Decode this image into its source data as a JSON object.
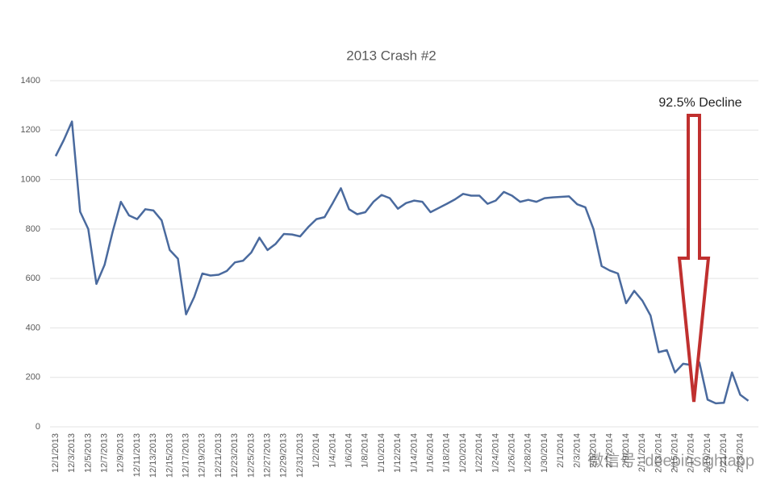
{
  "chart_data": {
    "type": "line",
    "title": "2013 Crash #2",
    "annotation": "92.5% Decline",
    "watermark": "微信号: deepinsightapp",
    "categories": [
      "12/1/2013",
      null,
      "12/3/2013",
      null,
      "12/5/2013",
      null,
      "12/7/2013",
      null,
      "12/9/2013",
      null,
      "12/11/2013",
      null,
      "12/13/2013",
      null,
      "12/15/2013",
      null,
      "12/17/2013",
      null,
      "12/19/2013",
      null,
      "12/21/2013",
      null,
      "12/23/2013",
      null,
      "12/25/2013",
      null,
      "12/27/2013",
      null,
      "12/29/2013",
      null,
      "12/31/2013",
      null,
      "1/2/2014",
      null,
      "1/4/2014",
      null,
      "1/6/2014",
      null,
      "1/8/2014",
      null,
      "1/10/2014",
      null,
      "1/12/2014",
      null,
      "1/14/2014",
      null,
      "1/16/2014",
      null,
      "1/18/2014",
      null,
      "1/20/2014",
      null,
      "1/22/2014",
      null,
      "1/24/2014",
      null,
      "1/26/2014",
      null,
      "1/28/2014",
      null,
      "1/30/2014",
      null,
      "2/1/2014",
      null,
      "2/3/2014",
      null,
      "2/5/2014",
      null,
      "2/7/2014",
      null,
      "2/9/2014",
      null,
      "2/11/2014",
      null,
      "2/13/2014",
      null,
      "2/15/2014",
      null,
      "2/17/2014",
      null,
      "2/19/2014",
      null,
      "2/21/2014",
      null,
      "2/23/2014",
      null
    ],
    "values": [
      1095,
      1160,
      1235,
      870,
      800,
      578,
      655,
      790,
      910,
      855,
      840,
      880,
      875,
      835,
      715,
      680,
      455,
      525,
      620,
      612,
      615,
      630,
      665,
      672,
      705,
      765,
      715,
      740,
      780,
      778,
      770,
      808,
      840,
      848,
      905,
      965,
      880,
      860,
      868,
      910,
      938,
      925,
      882,
      905,
      915,
      910,
      868,
      885,
      902,
      920,
      942,
      935,
      935,
      902,
      915,
      950,
      935,
      910,
      918,
      910,
      925,
      928,
      930,
      932,
      900,
      888,
      800,
      650,
      632,
      620,
      500,
      550,
      510,
      450,
      302,
      310,
      220,
      255,
      250,
      260,
      110,
      95,
      97,
      220,
      130,
      105
    ],
    "color": "#4a6a9e",
    "ylim": [
      0,
      1400
    ],
    "yticks": [
      0,
      200,
      400,
      600,
      800,
      1000,
      1200,
      1400
    ],
    "grid": true
  }
}
